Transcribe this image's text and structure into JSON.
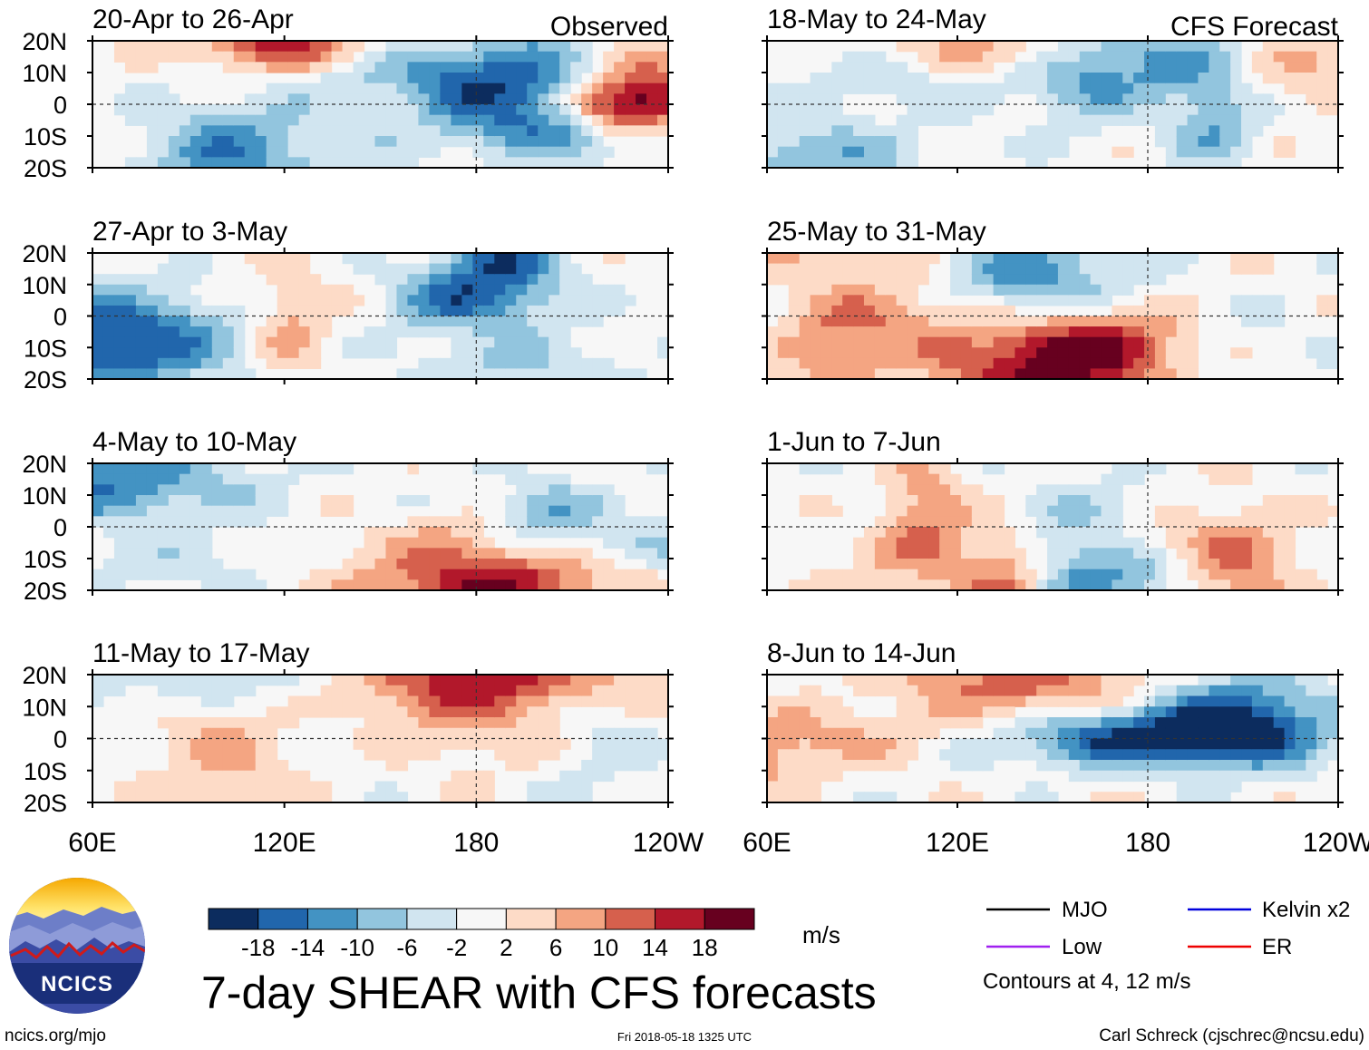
{
  "chart_data": {
    "type": "heatmap",
    "title": "7-day SHEAR with CFS forecasts",
    "units": "m/s",
    "columns": [
      {
        "tag": "Observed",
        "panels": [
          "20-Apr to 26-Apr",
          "27-Apr to 3-May",
          "4-May to 10-May",
          "11-May to 17-May"
        ]
      },
      {
        "tag": "CFS Forecast",
        "panels": [
          "18-May to 24-May",
          "25-May to 31-May",
          "1-Jun to 7-Jun",
          "8-Jun to 14-Jun"
        ]
      }
    ],
    "lat_ticks": [
      "20N",
      "10N",
      "0",
      "10S",
      "20S"
    ],
    "lat_values": [
      20,
      10,
      0,
      -10,
      -20
    ],
    "lat_range": [
      -20,
      20
    ],
    "lon_ticks": [
      "60E",
      "120E",
      "180",
      "120W"
    ],
    "lon_values": [
      60,
      120,
      180,
      240
    ],
    "lon_range": [
      60,
      240
    ],
    "colorbar": {
      "boundaries": [
        "-18",
        "-14",
        "-10",
        "-6",
        "-2",
        "2",
        "6",
        "10",
        "14",
        "18"
      ],
      "colors": [
        "#0c2c5e",
        "#2166ac",
        "#4393c3",
        "#92c5de",
        "#d1e5f0",
        "#f7f7f7",
        "#fddbc7",
        "#f4a582",
        "#d6604d",
        "#b2182b",
        "#67001f"
      ]
    },
    "legend": [
      {
        "label": "MJO",
        "color": "#000000"
      },
      {
        "label": "Kelvin x2",
        "color": "#0000dd"
      },
      {
        "label": "Low",
        "color": "#a020f0"
      },
      {
        "label": "ER",
        "color": "#ee0000"
      }
    ],
    "contour_note": "Contours at 4, 12 m/s"
  },
  "logo": {
    "text": "NCICS"
  },
  "footer": {
    "left": "ncics.org/mjo",
    "center": "Fri 2018-05-18 1325 UTC",
    "right": "Carl Schreck (cjschrec@ncsu.edu)"
  }
}
